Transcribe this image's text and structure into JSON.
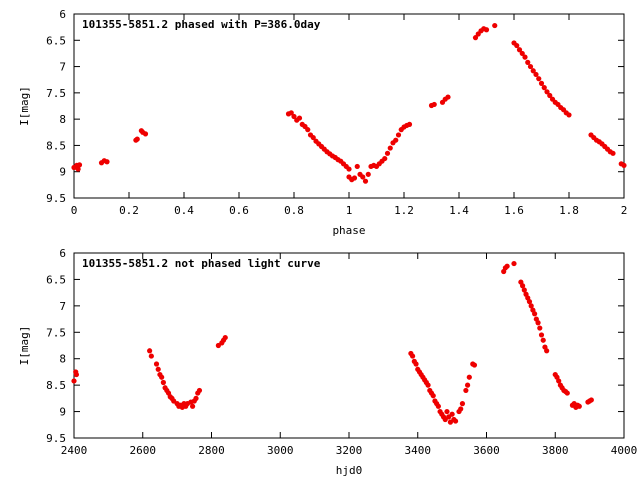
{
  "chart_data": [
    {
      "type": "scatter",
      "title": "101355-5851.2 phased with P=386.0day",
      "xlabel": "phase",
      "ylabel": "I[mag]",
      "xlim": [
        0,
        2
      ],
      "ylim": [
        9.5,
        6
      ],
      "y_axis_inverted": true,
      "grid": false,
      "legend": "none",
      "marker_color": "#ee0000",
      "x_ticks": [
        {
          "value": 0,
          "label": "0"
        },
        {
          "value": 0.2,
          "label": "0.2"
        },
        {
          "value": 0.4,
          "label": "0.4"
        },
        {
          "value": 0.6,
          "label": "0.6"
        },
        {
          "value": 0.8,
          "label": "0.8"
        },
        {
          "value": 1.0,
          "label": "1"
        },
        {
          "value": 1.2,
          "label": "1.2"
        },
        {
          "value": 1.4,
          "label": "1.4"
        },
        {
          "value": 1.6,
          "label": "1.6"
        },
        {
          "value": 1.8,
          "label": "1.8"
        },
        {
          "value": 2.0,
          "label": "2"
        }
      ],
      "y_ticks": [
        {
          "value": 6,
          "label": "6"
        },
        {
          "value": 6.5,
          "label": "6.5"
        },
        {
          "value": 7,
          "label": "7"
        },
        {
          "value": 7.5,
          "label": "7.5"
        },
        {
          "value": 8,
          "label": "8"
        },
        {
          "value": 8.5,
          "label": "8.5"
        },
        {
          "value": 9,
          "label": "9"
        },
        {
          "value": 9.5,
          "label": "9.5"
        }
      ],
      "points": [
        [
          0.0,
          8.92
        ],
        [
          0.01,
          8.88
        ],
        [
          0.015,
          8.95
        ],
        [
          0.02,
          8.87
        ],
        [
          0.1,
          8.83
        ],
        [
          0.11,
          8.79
        ],
        [
          0.12,
          8.81
        ],
        [
          0.225,
          8.4
        ],
        [
          0.23,
          8.38
        ],
        [
          0.245,
          8.22
        ],
        [
          0.25,
          8.25
        ],
        [
          0.26,
          8.28
        ],
        [
          0.78,
          7.9
        ],
        [
          0.79,
          7.88
        ],
        [
          0.8,
          7.95
        ],
        [
          0.81,
          8.02
        ],
        [
          0.82,
          7.98
        ],
        [
          0.83,
          8.1
        ],
        [
          0.84,
          8.14
        ],
        [
          0.85,
          8.2
        ],
        [
          0.86,
          8.3
        ],
        [
          0.87,
          8.35
        ],
        [
          0.88,
          8.42
        ],
        [
          0.89,
          8.47
        ],
        [
          0.9,
          8.52
        ],
        [
          0.91,
          8.57
        ],
        [
          0.92,
          8.62
        ],
        [
          0.93,
          8.66
        ],
        [
          0.94,
          8.7
        ],
        [
          0.95,
          8.73
        ],
        [
          0.96,
          8.77
        ],
        [
          0.97,
          8.8
        ],
        [
          0.98,
          8.85
        ],
        [
          0.99,
          8.9
        ],
        [
          1.0,
          8.95
        ],
        [
          1.0,
          9.1
        ],
        [
          1.01,
          9.15
        ],
        [
          1.02,
          9.12
        ],
        [
          1.03,
          8.9
        ],
        [
          1.04,
          9.05
        ],
        [
          1.05,
          9.1
        ],
        [
          1.06,
          9.18
        ],
        [
          1.07,
          9.05
        ],
        [
          1.08,
          8.9
        ],
        [
          1.09,
          8.88
        ],
        [
          1.1,
          8.9
        ],
        [
          1.11,
          8.85
        ],
        [
          1.12,
          8.8
        ],
        [
          1.13,
          8.75
        ],
        [
          1.14,
          8.65
        ],
        [
          1.15,
          8.55
        ],
        [
          1.16,
          8.45
        ],
        [
          1.17,
          8.4
        ],
        [
          1.18,
          8.3
        ],
        [
          1.19,
          8.2
        ],
        [
          1.2,
          8.15
        ],
        [
          1.21,
          8.12
        ],
        [
          1.22,
          8.1
        ],
        [
          1.3,
          7.74
        ],
        [
          1.31,
          7.72
        ],
        [
          1.34,
          7.68
        ],
        [
          1.35,
          7.62
        ],
        [
          1.36,
          7.58
        ],
        [
          1.46,
          6.45
        ],
        [
          1.47,
          6.38
        ],
        [
          1.48,
          6.32
        ],
        [
          1.49,
          6.28
        ],
        [
          1.5,
          6.3
        ],
        [
          1.53,
          6.22
        ],
        [
          1.6,
          6.55
        ],
        [
          1.61,
          6.6
        ],
        [
          1.62,
          6.68
        ],
        [
          1.63,
          6.75
        ],
        [
          1.64,
          6.82
        ],
        [
          1.65,
          6.92
        ],
        [
          1.66,
          7.0
        ],
        [
          1.67,
          7.08
        ],
        [
          1.68,
          7.15
        ],
        [
          1.69,
          7.23
        ],
        [
          1.7,
          7.32
        ],
        [
          1.71,
          7.4
        ],
        [
          1.72,
          7.48
        ],
        [
          1.73,
          7.55
        ],
        [
          1.74,
          7.62
        ],
        [
          1.75,
          7.68
        ],
        [
          1.76,
          7.72
        ],
        [
          1.77,
          7.78
        ],
        [
          1.78,
          7.82
        ],
        [
          1.79,
          7.88
        ],
        [
          1.8,
          7.92
        ],
        [
          1.88,
          8.3
        ],
        [
          1.89,
          8.35
        ],
        [
          1.9,
          8.4
        ],
        [
          1.91,
          8.43
        ],
        [
          1.92,
          8.47
        ],
        [
          1.93,
          8.52
        ],
        [
          1.94,
          8.57
        ],
        [
          1.95,
          8.62
        ],
        [
          1.96,
          8.65
        ],
        [
          1.99,
          8.85
        ],
        [
          2.0,
          8.88
        ]
      ]
    },
    {
      "type": "scatter",
      "title": "101355-5851.2 not phased light curve",
      "xlabel": "hjd0",
      "ylabel": "I[mag]",
      "xlim": [
        2400,
        4000
      ],
      "ylim": [
        9.5,
        6
      ],
      "y_axis_inverted": true,
      "grid": false,
      "legend": "none",
      "marker_color": "#ee0000",
      "x_ticks": [
        {
          "value": 2400,
          "label": "2400"
        },
        {
          "value": 2600,
          "label": "2600"
        },
        {
          "value": 2800,
          "label": "2800"
        },
        {
          "value": 3000,
          "label": "3000"
        },
        {
          "value": 3200,
          "label": "3200"
        },
        {
          "value": 3400,
          "label": "3400"
        },
        {
          "value": 3600,
          "label": "3600"
        },
        {
          "value": 3800,
          "label": "3800"
        },
        {
          "value": 4000,
          "label": "4000"
        }
      ],
      "y_ticks": [
        {
          "value": 6,
          "label": "6"
        },
        {
          "value": 6.5,
          "label": "6.5"
        },
        {
          "value": 7,
          "label": "7"
        },
        {
          "value": 7.5,
          "label": "7.5"
        },
        {
          "value": 8,
          "label": "8"
        },
        {
          "value": 8.5,
          "label": "8.5"
        },
        {
          "value": 9,
          "label": "9"
        },
        {
          "value": 9.5,
          "label": "9.5"
        }
      ],
      "points": [
        [
          2400,
          8.42
        ],
        [
          2405,
          8.25
        ],
        [
          2407,
          8.3
        ],
        [
          2620,
          7.85
        ],
        [
          2625,
          7.95
        ],
        [
          2640,
          8.1
        ],
        [
          2645,
          8.2
        ],
        [
          2650,
          8.3
        ],
        [
          2655,
          8.35
        ],
        [
          2660,
          8.45
        ],
        [
          2665,
          8.55
        ],
        [
          2670,
          8.6
        ],
        [
          2675,
          8.65
        ],
        [
          2680,
          8.72
        ],
        [
          2685,
          8.75
        ],
        [
          2690,
          8.8
        ],
        [
          2700,
          8.85
        ],
        [
          2705,
          8.9
        ],
        [
          2710,
          8.88
        ],
        [
          2715,
          8.92
        ],
        [
          2720,
          8.85
        ],
        [
          2725,
          8.9
        ],
        [
          2730,
          8.85
        ],
        [
          2740,
          8.82
        ],
        [
          2745,
          8.9
        ],
        [
          2750,
          8.8
        ],
        [
          2755,
          8.75
        ],
        [
          2760,
          8.65
        ],
        [
          2765,
          8.6
        ],
        [
          2820,
          7.75
        ],
        [
          2830,
          7.7
        ],
        [
          2835,
          7.65
        ],
        [
          2840,
          7.6
        ],
        [
          3380,
          7.9
        ],
        [
          3385,
          7.95
        ],
        [
          3390,
          8.05
        ],
        [
          3395,
          8.1
        ],
        [
          3400,
          8.2
        ],
        [
          3405,
          8.25
        ],
        [
          3410,
          8.3
        ],
        [
          3415,
          8.35
        ],
        [
          3420,
          8.4
        ],
        [
          3425,
          8.45
        ],
        [
          3430,
          8.5
        ],
        [
          3435,
          8.6
        ],
        [
          3440,
          8.65
        ],
        [
          3445,
          8.7
        ],
        [
          3450,
          8.8
        ],
        [
          3455,
          8.85
        ],
        [
          3460,
          8.9
        ],
        [
          3465,
          9.0
        ],
        [
          3470,
          9.05
        ],
        [
          3475,
          9.1
        ],
        [
          3480,
          9.15
        ],
        [
          3485,
          9.0
        ],
        [
          3490,
          9.1
        ],
        [
          3495,
          9.2
        ],
        [
          3500,
          9.05
        ],
        [
          3505,
          9.15
        ],
        [
          3510,
          9.18
        ],
        [
          3520,
          9.0
        ],
        [
          3525,
          8.95
        ],
        [
          3530,
          8.85
        ],
        [
          3540,
          8.6
        ],
        [
          3545,
          8.5
        ],
        [
          3550,
          8.35
        ],
        [
          3560,
          8.1
        ],
        [
          3565,
          8.12
        ],
        [
          3650,
          6.35
        ],
        [
          3655,
          6.28
        ],
        [
          3660,
          6.25
        ],
        [
          3680,
          6.2
        ],
        [
          3700,
          6.55
        ],
        [
          3705,
          6.62
        ],
        [
          3710,
          6.7
        ],
        [
          3715,
          6.78
        ],
        [
          3720,
          6.85
        ],
        [
          3725,
          6.92
        ],
        [
          3730,
          7.0
        ],
        [
          3735,
          7.08
        ],
        [
          3740,
          7.15
        ],
        [
          3745,
          7.25
        ],
        [
          3750,
          7.32
        ],
        [
          3755,
          7.42
        ],
        [
          3760,
          7.55
        ],
        [
          3765,
          7.65
        ],
        [
          3770,
          7.78
        ],
        [
          3775,
          7.85
        ],
        [
          3800,
          8.3
        ],
        [
          3805,
          8.35
        ],
        [
          3810,
          8.42
        ],
        [
          3815,
          8.5
        ],
        [
          3820,
          8.55
        ],
        [
          3825,
          8.6
        ],
        [
          3830,
          8.62
        ],
        [
          3835,
          8.65
        ],
        [
          3850,
          8.88
        ],
        [
          3855,
          8.85
        ],
        [
          3860,
          8.92
        ],
        [
          3865,
          8.88
        ],
        [
          3870,
          8.9
        ],
        [
          3895,
          8.82
        ],
        [
          3900,
          8.8
        ],
        [
          3905,
          8.78
        ]
      ]
    }
  ]
}
